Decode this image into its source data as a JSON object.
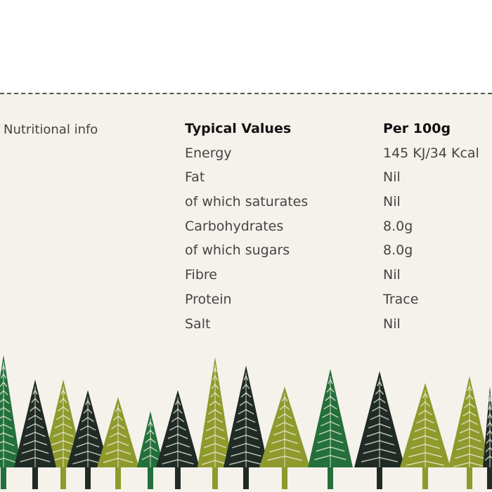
{
  "section_label": "Nutritional info",
  "table": {
    "headers": [
      "Typical Values",
      "Per 100g"
    ],
    "rows": [
      [
        "Energy",
        "145 KJ/34 Kcal"
      ],
      [
        "Fat",
        "Nil"
      ],
      [
        "of which saturates",
        "Nil"
      ],
      [
        "Carbohydrates",
        "8.0g"
      ],
      [
        "of which sugars",
        "8.0g"
      ],
      [
        "Fibre",
        "Nil"
      ],
      [
        "Protein",
        "Trace"
      ],
      [
        "Salt",
        "Nil"
      ]
    ]
  },
  "colors": {
    "dark_green": "#23703a",
    "olive": "#8e9a2c",
    "dark": "#1f2b24",
    "paper": "#f5f2ec"
  }
}
